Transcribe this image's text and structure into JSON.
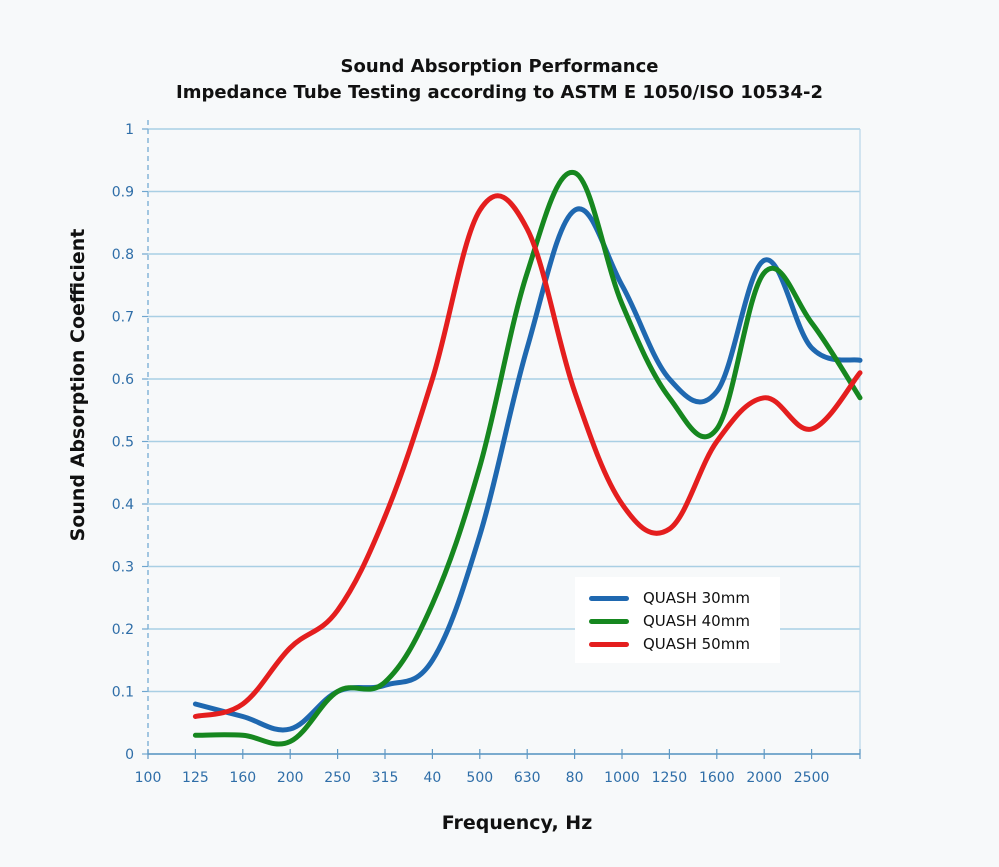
{
  "chart_data": {
    "type": "line",
    "title": "Sound Absorption Performance",
    "subtitle": "Impedance Tube Testing according to ASTM E 1050/ISO 10534-2",
    "xlabel": "Frequency, Hz",
    "ylabel": "Sound Absorption Coefficient",
    "x_tick_labels": [
      "100",
      "125",
      "160",
      "200",
      "250",
      "315",
      "40",
      "500",
      "630",
      "80",
      "1000",
      "1250",
      "1600",
      "2000",
      "2500"
    ],
    "y_tick_labels": [
      "0",
      "0.1",
      "0.2",
      "0.3",
      "0.4",
      "0.5",
      "0.6",
      "0.7",
      "0.8",
      "0.9",
      "1"
    ],
    "ylim": [
      0,
      1
    ],
    "grid": "horizontal",
    "legend_position": "lower-right",
    "series": [
      {
        "name": "QUASH 30mm",
        "color": "#1f68b0",
        "points": [
          [
            "125",
            0.08
          ],
          [
            "160",
            0.06
          ],
          [
            "200",
            0.04
          ],
          [
            "250",
            0.1
          ],
          [
            "315",
            0.11
          ],
          [
            "40",
            0.15
          ],
          [
            "500",
            0.35
          ],
          [
            "630",
            0.65
          ],
          [
            "80",
            0.87
          ],
          [
            "1000",
            0.75
          ],
          [
            "1250",
            0.6
          ],
          [
            "1600",
            0.58
          ],
          [
            "2000",
            0.79
          ],
          [
            "2500",
            0.65
          ],
          [
            "end",
            0.63
          ]
        ]
      },
      {
        "name": "QUASH 40mm",
        "color": "#16871f",
        "points": [
          [
            "125",
            0.03
          ],
          [
            "160",
            0.03
          ],
          [
            "200",
            0.02
          ],
          [
            "250",
            0.1
          ],
          [
            "315",
            0.115
          ],
          [
            "40",
            0.24
          ],
          [
            "500",
            0.46
          ],
          [
            "630",
            0.77
          ],
          [
            "80",
            0.93
          ],
          [
            "1000",
            0.72
          ],
          [
            "1250",
            0.57
          ],
          [
            "1600",
            0.52
          ],
          [
            "2000",
            0.77
          ],
          [
            "2500",
            0.69
          ],
          [
            "end",
            0.57
          ]
        ]
      },
      {
        "name": "QUASH 50mm",
        "color": "#e41e1e",
        "points": [
          [
            "125",
            0.06
          ],
          [
            "160",
            0.08
          ],
          [
            "200",
            0.17
          ],
          [
            "250",
            0.23
          ],
          [
            "315",
            0.38
          ],
          [
            "40",
            0.6
          ],
          [
            "500",
            0.87
          ],
          [
            "630",
            0.84
          ],
          [
            "80",
            0.58
          ],
          [
            "1000",
            0.4
          ],
          [
            "1250",
            0.36
          ],
          [
            "1600",
            0.5
          ],
          [
            "2000",
            0.57
          ],
          [
            "2500",
            0.52
          ],
          [
            "end",
            0.61
          ]
        ]
      }
    ]
  }
}
